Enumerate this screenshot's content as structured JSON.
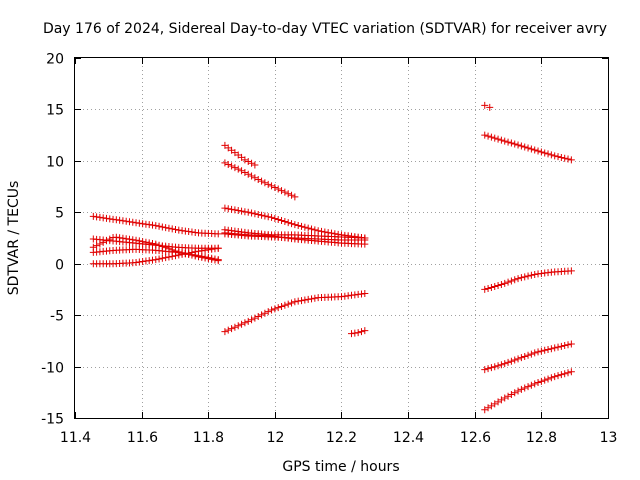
{
  "chart_data": {
    "type": "scatter",
    "title": "Day 176 of 2024, Sidereal Day-to-day VTEC variation (SDTVAR) for receiver avry",
    "xlabel": "GPS time / hours",
    "ylabel": "SDTVAR / TECUs",
    "xlim": [
      11.4,
      13.0
    ],
    "ylim": [
      -15,
      20
    ],
    "xticks": [
      11.4,
      11.6,
      11.8,
      12.0,
      12.2,
      12.4,
      12.6,
      12.8,
      13.0
    ],
    "xtick_labels": [
      "11.4",
      "11.6",
      "11.8",
      "12",
      "12.2",
      "12.4",
      "12.6",
      "12.8",
      "13"
    ],
    "yticks": [
      -15,
      -10,
      -5,
      0,
      5,
      10,
      15,
      20
    ],
    "ytick_labels": [
      "-15",
      "-10",
      "-5",
      "0",
      "5",
      "10",
      "15",
      "20"
    ],
    "grid": true,
    "marker": "+",
    "color": "#e00000",
    "series": [
      {
        "name": "s1",
        "x0": 11.455,
        "x1": 11.83,
        "y": [
          4.6,
          4.3,
          4.0,
          3.7,
          3.3,
          3.0,
          2.9
        ]
      },
      {
        "name": "s2",
        "x0": 11.455,
        "x1": 11.83,
        "y": [
          2.4,
          2.2,
          2.0,
          1.8,
          1.6,
          1.5,
          1.5
        ]
      },
      {
        "name": "s3",
        "x0": 11.455,
        "x1": 11.83,
        "y": [
          1.6,
          2.6,
          2.3,
          1.9,
          1.2,
          0.7,
          0.3
        ]
      },
      {
        "name": "s4",
        "x0": 11.455,
        "x1": 11.83,
        "y": [
          0.0,
          0.0,
          0.1,
          0.4,
          0.8,
          1.2,
          1.5
        ]
      },
      {
        "name": "s5",
        "x0": 11.455,
        "x1": 11.83,
        "y": [
          1.1,
          1.3,
          1.4,
          1.3,
          1.1,
          0.8,
          0.4
        ]
      },
      {
        "name": "s6",
        "x0": 11.85,
        "x1": 11.94,
        "y": [
          11.5,
          10.8,
          10.1,
          9.6
        ]
      },
      {
        "name": "s7",
        "x0": 11.85,
        "x1": 12.06,
        "y": [
          9.8,
          9.0,
          8.1,
          7.3,
          6.5
        ]
      },
      {
        "name": "s8",
        "x0": 11.85,
        "x1": 12.27,
        "y": [
          5.4,
          5.0,
          4.5,
          3.8,
          3.2,
          2.8,
          2.5
        ]
      },
      {
        "name": "s9",
        "x0": 11.85,
        "x1": 12.27,
        "y": [
          3.3,
          3.0,
          2.8,
          2.8,
          2.7,
          2.6,
          2.5
        ]
      },
      {
        "name": "s10",
        "x0": 11.85,
        "x1": 12.27,
        "y": [
          2.9,
          2.7,
          2.6,
          2.5,
          2.4,
          2.3,
          2.3
        ]
      },
      {
        "name": "s11",
        "x0": 11.85,
        "x1": 12.27,
        "y": [
          3.0,
          2.8,
          2.7,
          2.4,
          2.2,
          2.0,
          1.9
        ]
      },
      {
        "name": "s12",
        "x0": 11.85,
        "x1": 12.27,
        "y": [
          -6.6,
          -5.6,
          -4.5,
          -3.7,
          -3.3,
          -3.2,
          -2.9
        ]
      },
      {
        "name": "s13",
        "x0": 12.23,
        "x1": 12.27,
        "y": [
          -6.8,
          -6.7,
          -6.5
        ]
      },
      {
        "name": "s14",
        "x0": 12.63,
        "x1": 12.645,
        "y": [
          15.4,
          15.2
        ]
      },
      {
        "name": "s15",
        "x0": 12.63,
        "x1": 12.89,
        "y": [
          12.5,
          12.0,
          11.5,
          11.0,
          10.5,
          10.1
        ]
      },
      {
        "name": "s16",
        "x0": 12.63,
        "x1": 12.89,
        "y": [
          -2.5,
          -2.0,
          -1.4,
          -1.0,
          -0.8,
          -0.7
        ]
      },
      {
        "name": "s17",
        "x0": 12.63,
        "x1": 12.89,
        "y": [
          -10.3,
          -9.8,
          -9.2,
          -8.6,
          -8.2,
          -7.8
        ]
      },
      {
        "name": "s18",
        "x0": 12.63,
        "x1": 12.89,
        "y": [
          -14.2,
          -13.2,
          -12.3,
          -11.6,
          -11.0,
          -10.5
        ]
      }
    ]
  }
}
